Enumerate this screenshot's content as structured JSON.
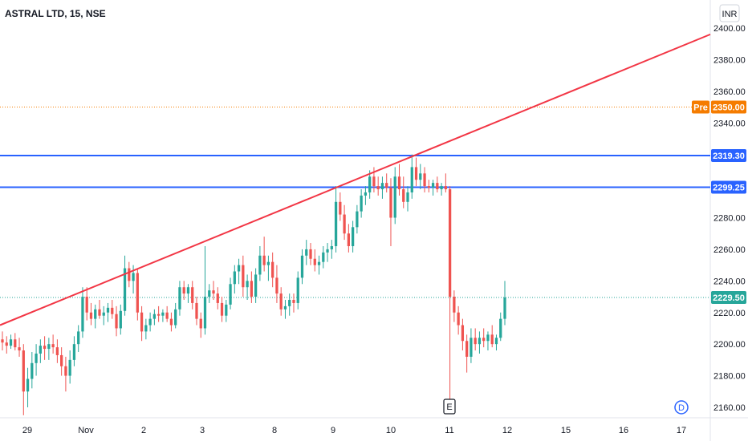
{
  "header": {
    "title": "ASTRAL LTD, 15, NSE"
  },
  "axis": {
    "currency": "INR"
  },
  "chart_data": {
    "type": "candlestick",
    "title": "ASTRAL LTD, 15, NSE",
    "currency": "INR",
    "ylim": [
      2153,
      2410
    ],
    "y_ticks": [
      2160,
      2180,
      2200,
      2220,
      2240,
      2260,
      2280,
      2300,
      2320,
      2340,
      2360,
      2380,
      2400
    ],
    "y_tick_labels": [
      "2160.00",
      "2180.00",
      "2200.00",
      "2220.00",
      "2240.00",
      "2260.00",
      "2280.00",
      "2300.00",
      "2320.00",
      "2340.00",
      "2360.00",
      "2380.00",
      "2400.00"
    ],
    "x_tick_labels": [
      "29",
      "Nov",
      "2",
      "3",
      "8",
      "9",
      "10",
      "11",
      "12",
      "15",
      "16",
      "17"
    ],
    "price_tags": [
      {
        "label": "2319.30",
        "value": 2319.3,
        "color": "#2962ff"
      },
      {
        "label": "2299.25",
        "value": 2299.25,
        "color": "#2962ff"
      },
      {
        "label": "2229.50",
        "value": 2229.5,
        "color": "#26a69a"
      },
      {
        "label": "2350.00",
        "value": 2350.0,
        "color": "#f57c00",
        "badge": "Pre"
      }
    ],
    "horizontal_lines": [
      {
        "value": 2319.3,
        "color": "#2962ff",
        "style": "solid"
      },
      {
        "value": 2299.25,
        "color": "#2962ff",
        "style": "solid"
      },
      {
        "value": 2350.0,
        "color": "#f57c00",
        "style": "dotted"
      },
      {
        "value": 2229.5,
        "color": "#26a69a",
        "style": "dotted"
      }
    ],
    "trendline": {
      "from": {
        "date": "Oct 28",
        "price": 2212
      },
      "to": {
        "date": "Nov 17",
        "price": 2396
      },
      "color": "#f23645"
    },
    "markers": [
      {
        "label": "E",
        "date": "Nov 11"
      },
      {
        "label": "D",
        "date": "Nov 17"
      }
    ],
    "candles": [
      {
        "o": 2203,
        "h": 2208,
        "l": 2196,
        "c": 2201
      },
      {
        "o": 2201,
        "h": 2205,
        "l": 2194,
        "c": 2199
      },
      {
        "o": 2199,
        "h": 2206,
        "l": 2197,
        "c": 2203
      },
      {
        "o": 2203,
        "h": 2207,
        "l": 2196,
        "c": 2198
      },
      {
        "o": 2198,
        "h": 2204,
        "l": 2192,
        "c": 2196
      },
      {
        "o": 2196,
        "h": 2200,
        "l": 2155,
        "c": 2170
      },
      {
        "o": 2170,
        "h": 2185,
        "l": 2160,
        "c": 2178
      },
      {
        "o": 2178,
        "h": 2195,
        "l": 2172,
        "c": 2188
      },
      {
        "o": 2188,
        "h": 2200,
        "l": 2180,
        "c": 2194
      },
      {
        "o": 2194,
        "h": 2203,
        "l": 2188,
        "c": 2199
      },
      {
        "o": 2199,
        "h": 2205,
        "l": 2190,
        "c": 2197
      },
      {
        "o": 2197,
        "h": 2204,
        "l": 2190,
        "c": 2200
      },
      {
        "o": 2200,
        "h": 2206,
        "l": 2194,
        "c": 2198
      },
      {
        "o": 2198,
        "h": 2203,
        "l": 2188,
        "c": 2193
      },
      {
        "o": 2193,
        "h": 2198,
        "l": 2180,
        "c": 2186
      },
      {
        "o": 2186,
        "h": 2192,
        "l": 2170,
        "c": 2180
      },
      {
        "o": 2180,
        "h": 2196,
        "l": 2175,
        "c": 2190
      },
      {
        "o": 2190,
        "h": 2205,
        "l": 2186,
        "c": 2200
      },
      {
        "o": 2200,
        "h": 2212,
        "l": 2195,
        "c": 2208
      },
      {
        "o": 2208,
        "h": 2236,
        "l": 2204,
        "c": 2230
      },
      {
        "o": 2230,
        "h": 2236,
        "l": 2215,
        "c": 2220
      },
      {
        "o": 2220,
        "h": 2226,
        "l": 2212,
        "c": 2216
      },
      {
        "o": 2216,
        "h": 2225,
        "l": 2210,
        "c": 2222
      },
      {
        "o": 2222,
        "h": 2228,
        "l": 2216,
        "c": 2218
      },
      {
        "o": 2218,
        "h": 2224,
        "l": 2212,
        "c": 2220
      },
      {
        "o": 2220,
        "h": 2226,
        "l": 2214,
        "c": 2223
      },
      {
        "o": 2223,
        "h": 2228,
        "l": 2216,
        "c": 2219
      },
      {
        "o": 2219,
        "h": 2224,
        "l": 2205,
        "c": 2210
      },
      {
        "o": 2210,
        "h": 2225,
        "l": 2206,
        "c": 2221
      },
      {
        "o": 2221,
        "h": 2256,
        "l": 2218,
        "c": 2248
      },
      {
        "o": 2248,
        "h": 2252,
        "l": 2236,
        "c": 2240
      },
      {
        "o": 2240,
        "h": 2250,
        "l": 2232,
        "c": 2245
      },
      {
        "o": 2245,
        "h": 2248,
        "l": 2215,
        "c": 2220
      },
      {
        "o": 2220,
        "h": 2224,
        "l": 2202,
        "c": 2208
      },
      {
        "o": 2208,
        "h": 2216,
        "l": 2203,
        "c": 2212
      },
      {
        "o": 2212,
        "h": 2220,
        "l": 2208,
        "c": 2216
      },
      {
        "o": 2216,
        "h": 2222,
        "l": 2212,
        "c": 2219
      },
      {
        "o": 2219,
        "h": 2224,
        "l": 2214,
        "c": 2218
      },
      {
        "o": 2218,
        "h": 2222,
        "l": 2214,
        "c": 2220
      },
      {
        "o": 2220,
        "h": 2224,
        "l": 2214,
        "c": 2216
      },
      {
        "o": 2216,
        "h": 2220,
        "l": 2208,
        "c": 2212
      },
      {
        "o": 2212,
        "h": 2226,
        "l": 2210,
        "c": 2222
      },
      {
        "o": 2222,
        "h": 2240,
        "l": 2218,
        "c": 2236
      },
      {
        "o": 2236,
        "h": 2240,
        "l": 2228,
        "c": 2232
      },
      {
        "o": 2232,
        "h": 2238,
        "l": 2226,
        "c": 2236
      },
      {
        "o": 2236,
        "h": 2240,
        "l": 2222,
        "c": 2226
      },
      {
        "o": 2226,
        "h": 2230,
        "l": 2212,
        "c": 2216
      },
      {
        "o": 2216,
        "h": 2220,
        "l": 2204,
        "c": 2210
      },
      {
        "o": 2210,
        "h": 2262,
        "l": 2206,
        "c": 2230
      },
      {
        "o": 2230,
        "h": 2238,
        "l": 2226,
        "c": 2234
      },
      {
        "o": 2234,
        "h": 2240,
        "l": 2228,
        "c": 2232
      },
      {
        "o": 2232,
        "h": 2236,
        "l": 2222,
        "c": 2226
      },
      {
        "o": 2226,
        "h": 2230,
        "l": 2214,
        "c": 2218
      },
      {
        "o": 2218,
        "h": 2228,
        "l": 2214,
        "c": 2225
      },
      {
        "o": 2225,
        "h": 2242,
        "l": 2222,
        "c": 2238
      },
      {
        "o": 2238,
        "h": 2250,
        "l": 2232,
        "c": 2246
      },
      {
        "o": 2246,
        "h": 2254,
        "l": 2238,
        "c": 2250
      },
      {
        "o": 2250,
        "h": 2256,
        "l": 2230,
        "c": 2236
      },
      {
        "o": 2236,
        "h": 2244,
        "l": 2228,
        "c": 2240
      },
      {
        "o": 2240,
        "h": 2246,
        "l": 2226,
        "c": 2230
      },
      {
        "o": 2230,
        "h": 2248,
        "l": 2226,
        "c": 2244
      },
      {
        "o": 2244,
        "h": 2262,
        "l": 2240,
        "c": 2256
      },
      {
        "o": 2256,
        "h": 2268,
        "l": 2246,
        "c": 2250
      },
      {
        "o": 2250,
        "h": 2256,
        "l": 2240,
        "c": 2252
      },
      {
        "o": 2252,
        "h": 2258,
        "l": 2236,
        "c": 2242
      },
      {
        "o": 2242,
        "h": 2250,
        "l": 2226,
        "c": 2232
      },
      {
        "o": 2232,
        "h": 2236,
        "l": 2218,
        "c": 2222
      },
      {
        "o": 2222,
        "h": 2228,
        "l": 2216,
        "c": 2224
      },
      {
        "o": 2224,
        "h": 2232,
        "l": 2218,
        "c": 2228
      },
      {
        "o": 2228,
        "h": 2232,
        "l": 2220,
        "c": 2226
      },
      {
        "o": 2226,
        "h": 2246,
        "l": 2222,
        "c": 2242
      },
      {
        "o": 2242,
        "h": 2260,
        "l": 2238,
        "c": 2256
      },
      {
        "o": 2256,
        "h": 2266,
        "l": 2250,
        "c": 2260
      },
      {
        "o": 2260,
        "h": 2264,
        "l": 2250,
        "c": 2254
      },
      {
        "o": 2254,
        "h": 2260,
        "l": 2246,
        "c": 2250
      },
      {
        "o": 2250,
        "h": 2256,
        "l": 2244,
        "c": 2252
      },
      {
        "o": 2252,
        "h": 2262,
        "l": 2248,
        "c": 2258
      },
      {
        "o": 2258,
        "h": 2264,
        "l": 2252,
        "c": 2260
      },
      {
        "o": 2260,
        "h": 2266,
        "l": 2254,
        "c": 2262
      },
      {
        "o": 2262,
        "h": 2300,
        "l": 2258,
        "c": 2290
      },
      {
        "o": 2290,
        "h": 2296,
        "l": 2278,
        "c": 2282
      },
      {
        "o": 2282,
        "h": 2288,
        "l": 2266,
        "c": 2270
      },
      {
        "o": 2270,
        "h": 2276,
        "l": 2258,
        "c": 2262
      },
      {
        "o": 2262,
        "h": 2278,
        "l": 2258,
        "c": 2274
      },
      {
        "o": 2274,
        "h": 2288,
        "l": 2270,
        "c": 2284
      },
      {
        "o": 2284,
        "h": 2298,
        "l": 2280,
        "c": 2294
      },
      {
        "o": 2294,
        "h": 2300,
        "l": 2288,
        "c": 2296
      },
      {
        "o": 2296,
        "h": 2310,
        "l": 2292,
        "c": 2306
      },
      {
        "o": 2306,
        "h": 2312,
        "l": 2296,
        "c": 2300
      },
      {
        "o": 2300,
        "h": 2306,
        "l": 2294,
        "c": 2298
      },
      {
        "o": 2298,
        "h": 2306,
        "l": 2292,
        "c": 2302
      },
      {
        "o": 2302,
        "h": 2308,
        "l": 2296,
        "c": 2299
      },
      {
        "o": 2299,
        "h": 2305,
        "l": 2262,
        "c": 2280
      },
      {
        "o": 2280,
        "h": 2312,
        "l": 2276,
        "c": 2306
      },
      {
        "o": 2306,
        "h": 2314,
        "l": 2294,
        "c": 2298
      },
      {
        "o": 2298,
        "h": 2306,
        "l": 2286,
        "c": 2290
      },
      {
        "o": 2290,
        "h": 2300,
        "l": 2284,
        "c": 2296
      },
      {
        "o": 2296,
        "h": 2320,
        "l": 2292,
        "c": 2312
      },
      {
        "o": 2312,
        "h": 2318,
        "l": 2300,
        "c": 2304
      },
      {
        "o": 2304,
        "h": 2314,
        "l": 2298,
        "c": 2308
      },
      {
        "o": 2308,
        "h": 2312,
        "l": 2296,
        "c": 2300
      },
      {
        "o": 2300,
        "h": 2304,
        "l": 2296,
        "c": 2299
      },
      {
        "o": 2299,
        "h": 2304,
        "l": 2294,
        "c": 2302
      },
      {
        "o": 2302,
        "h": 2306,
        "l": 2296,
        "c": 2298
      },
      {
        "o": 2298,
        "h": 2302,
        "l": 2294,
        "c": 2300
      },
      {
        "o": 2300,
        "h": 2308,
        "l": 2296,
        "c": 2298
      },
      {
        "o": 2298,
        "h": 2300,
        "l": 2162,
        "c": 2230
      },
      {
        "o": 2230,
        "h": 2234,
        "l": 2214,
        "c": 2220
      },
      {
        "o": 2220,
        "h": 2224,
        "l": 2206,
        "c": 2212
      },
      {
        "o": 2212,
        "h": 2216,
        "l": 2196,
        "c": 2202
      },
      {
        "o": 2202,
        "h": 2206,
        "l": 2182,
        "c": 2192
      },
      {
        "o": 2192,
        "h": 2210,
        "l": 2188,
        "c": 2204
      },
      {
        "o": 2204,
        "h": 2210,
        "l": 2196,
        "c": 2200
      },
      {
        "o": 2200,
        "h": 2208,
        "l": 2194,
        "c": 2204
      },
      {
        "o": 2204,
        "h": 2210,
        "l": 2198,
        "c": 2202
      },
      {
        "o": 2202,
        "h": 2208,
        "l": 2196,
        "c": 2206
      },
      {
        "o": 2206,
        "h": 2212,
        "l": 2198,
        "c": 2200
      },
      {
        "o": 2200,
        "h": 2206,
        "l": 2196,
        "c": 2204
      },
      {
        "o": 2204,
        "h": 2220,
        "l": 2202,
        "c": 2216
      },
      {
        "o": 2216,
        "h": 2240,
        "l": 2212,
        "c": 2229.5
      }
    ]
  }
}
